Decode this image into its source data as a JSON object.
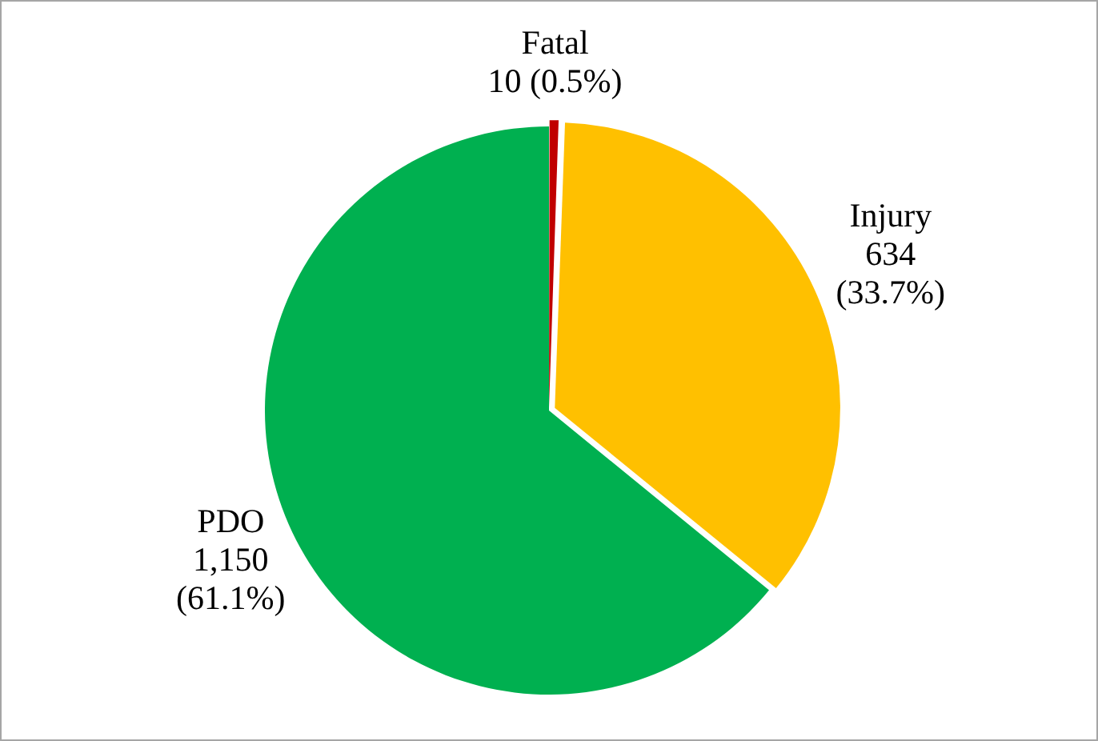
{
  "chart_data": {
    "type": "pie",
    "categories": [
      "Fatal",
      "Injury",
      "PDO"
    ],
    "values": [
      10,
      634,
      1150
    ],
    "colors": [
      "#c00000",
      "#ffc000",
      "#00b050"
    ],
    "value_labels": [
      "10 (0.5%)",
      "634\n(33.7%)",
      "1,150\n(61.1%)"
    ],
    "legend": false
  }
}
